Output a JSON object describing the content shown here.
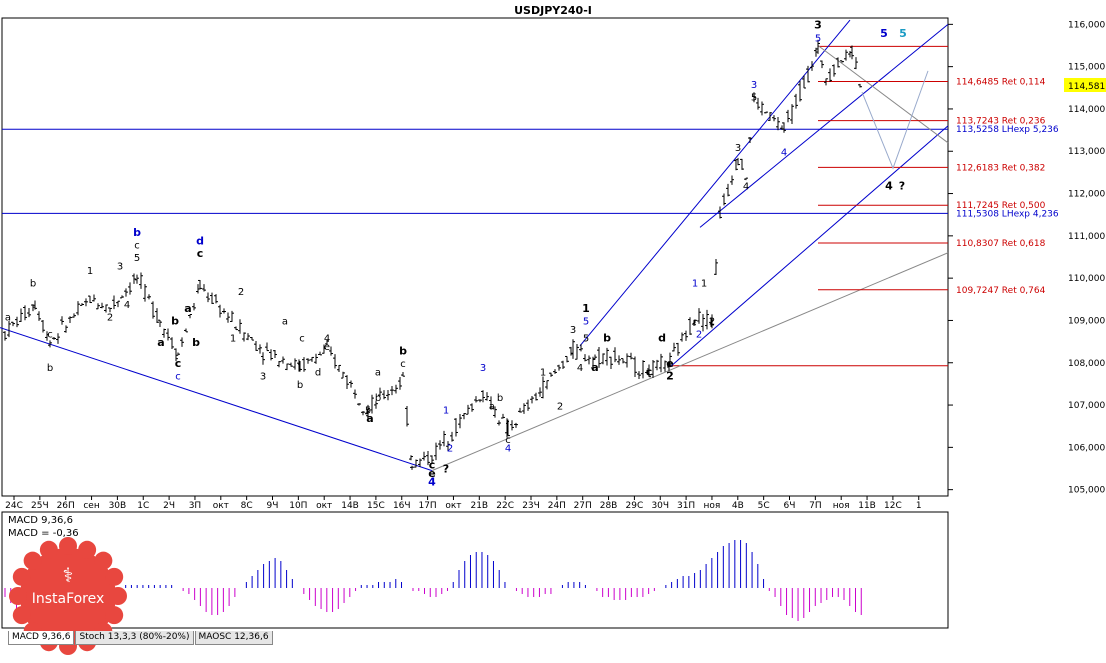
{
  "chart_data": {
    "type": "ohlc",
    "title": "USDJPY240-I",
    "price_axis": {
      "ticks": [
        "116,000",
        "115,000",
        "114,000",
        "113,000",
        "112,000",
        "111,000",
        "110,000",
        "109,000",
        "108,000",
        "107,000",
        "106,000",
        "105,000"
      ],
      "ylim": [
        104.85,
        116.15
      ],
      "current_price": "114,581"
    },
    "time_axis_labels": [
      "24С",
      "25Ч",
      "26П",
      "сен",
      "30В",
      "1С",
      "2Ч",
      "3П",
      "окт",
      "8С",
      "9Ч",
      "10П",
      "окт",
      "14В",
      "15С",
      "16Ч",
      "17П",
      "окт",
      "21В",
      "22С",
      "23Ч",
      "24П",
      "27П",
      "28В",
      "29С",
      "30Ч",
      "31П",
      "ноя",
      "4В",
      "5С",
      "6Ч",
      "7П",
      "ноя",
      "11В",
      "12С",
      "1"
    ],
    "fib_levels": [
      {
        "price": 114.6485,
        "label": "114,6485 Ret 0,114",
        "color": "#cc0000"
      },
      {
        "price": 113.7243,
        "label": "113,7243 Ret 0,236",
        "color": "#cc0000"
      },
      {
        "price": 113.5258,
        "label": "113,5258 LHexp 5,236",
        "color": "#0000cc"
      },
      {
        "price": 112.6183,
        "label": "112,6183 Ret 0,382",
        "color": "#cc0000"
      },
      {
        "price": 111.7245,
        "label": "111,7245 Ret 0,500",
        "color": "#cc0000"
      },
      {
        "price": 111.5308,
        "label": "111,5308 LHexp 4,236",
        "color": "#0000cc"
      },
      {
        "price": 110.8307,
        "label": "110,8307 Ret 0,618",
        "color": "#cc0000"
      },
      {
        "price": 109.7247,
        "label": "109,7247 Ret 0,764",
        "color": "#cc0000"
      }
    ],
    "horizontal_lines": [
      {
        "price": 115.48,
        "color": "#cc0000"
      },
      {
        "price": 107.93,
        "color": "#cc0000"
      },
      {
        "price": 113.52,
        "color": "#0000cc"
      },
      {
        "price": 111.53,
        "color": "#0000cc"
      }
    ],
    "wave_labels": [
      {
        "t": "a",
        "x": 8,
        "y": 109.0,
        "c": "#000"
      },
      {
        "t": "b",
        "x": 33,
        "y": 109.8,
        "c": "#000"
      },
      {
        "t": "c",
        "x": 50,
        "y": 108.6,
        "c": "#000"
      },
      {
        "t": "b",
        "x": 50,
        "y": 107.8,
        "c": "#000"
      },
      {
        "t": "1",
        "x": 90,
        "y": 110.1,
        "c": "#000"
      },
      {
        "t": "2",
        "x": 110,
        "y": 109.0,
        "c": "#000"
      },
      {
        "t": "3",
        "x": 120,
        "y": 110.2,
        "c": "#000"
      },
      {
        "t": "4",
        "x": 127,
        "y": 109.3,
        "c": "#000"
      },
      {
        "t": "5",
        "x": 137,
        "y": 110.4,
        "c": "#000"
      },
      {
        "t": "c",
        "x": 137,
        "y": 110.7,
        "c": "#000"
      },
      {
        "t": "b",
        "x": 137,
        "y": 111.0,
        "c": "#0000cc",
        "b": true
      },
      {
        "t": "a",
        "x": 161,
        "y": 108.4,
        "c": "#000",
        "b": true
      },
      {
        "t": "b",
        "x": 175,
        "y": 108.9,
        "c": "#000",
        "b": true
      },
      {
        "t": "c",
        "x": 178,
        "y": 107.9,
        "c": "#000",
        "b": true
      },
      {
        "t": "c",
        "x": 178,
        "y": 107.6,
        "c": "#0000cc"
      },
      {
        "t": "a",
        "x": 188,
        "y": 109.2,
        "c": "#000",
        "b": true
      },
      {
        "t": "b",
        "x": 196,
        "y": 108.4,
        "c": "#000",
        "b": true
      },
      {
        "t": "c",
        "x": 200,
        "y": 110.5,
        "c": "#000",
        "b": true
      },
      {
        "t": "d",
        "x": 200,
        "y": 110.8,
        "c": "#0000cc",
        "b": true
      },
      {
        "t": "2",
        "x": 241,
        "y": 109.6,
        "c": "#000"
      },
      {
        "t": "1",
        "x": 233,
        "y": 108.5,
        "c": "#000"
      },
      {
        "t": "3",
        "x": 263,
        "y": 107.6,
        "c": "#000"
      },
      {
        "t": "a",
        "x": 285,
        "y": 108.9,
        "c": "#000"
      },
      {
        "t": "b",
        "x": 300,
        "y": 107.4,
        "c": "#000"
      },
      {
        "t": "c",
        "x": 302,
        "y": 108.5,
        "c": "#000"
      },
      {
        "t": "4",
        "x": 327,
        "y": 108.5,
        "c": "#000"
      },
      {
        "t": "e",
        "x": 327,
        "y": 108.3,
        "c": "#000"
      },
      {
        "t": "d",
        "x": 318,
        "y": 107.7,
        "c": "#000"
      },
      {
        "t": "a",
        "x": 378,
        "y": 107.7,
        "c": "#000"
      },
      {
        "t": "b",
        "x": 378,
        "y": 107.1,
        "c": "#000"
      },
      {
        "t": "5",
        "x": 368,
        "y": 106.8,
        "c": "#000"
      },
      {
        "t": "a",
        "x": 370,
        "y": 106.6,
        "c": "#000",
        "b": true
      },
      {
        "t": "c",
        "x": 403,
        "y": 107.9,
        "c": "#000"
      },
      {
        "t": "b",
        "x": 403,
        "y": 108.2,
        "c": "#000",
        "b": true
      },
      {
        "t": "c",
        "x": 432,
        "y": 105.5,
        "c": "#000",
        "b": true
      },
      {
        "t": "e",
        "x": 432,
        "y": 105.3,
        "c": "#000",
        "b": true
      },
      {
        "t": "4",
        "x": 432,
        "y": 105.1,
        "c": "#0000cc",
        "b": true
      },
      {
        "t": "?",
        "x": 446,
        "y": 105.4,
        "c": "#000",
        "b": true
      },
      {
        "t": "1",
        "x": 446,
        "y": 106.8,
        "c": "#0000cc"
      },
      {
        "t": "2",
        "x": 450,
        "y": 105.9,
        "c": "#0000cc"
      },
      {
        "t": "3",
        "x": 483,
        "y": 107.8,
        "c": "#0000cc"
      },
      {
        "t": "a",
        "x": 492,
        "y": 106.9,
        "c": "#000"
      },
      {
        "t": "b",
        "x": 500,
        "y": 107.1,
        "c": "#000"
      },
      {
        "t": "c",
        "x": 508,
        "y": 106.1,
        "c": "#000"
      },
      {
        "t": "4",
        "x": 508,
        "y": 105.9,
        "c": "#0000cc"
      },
      {
        "t": "1",
        "x": 543,
        "y": 107.7,
        "c": "#000"
      },
      {
        "t": "2",
        "x": 560,
        "y": 106.9,
        "c": "#000"
      },
      {
        "t": "3",
        "x": 573,
        "y": 108.7,
        "c": "#000"
      },
      {
        "t": "4",
        "x": 580,
        "y": 107.8,
        "c": "#000"
      },
      {
        "t": "5",
        "x": 586,
        "y": 108.5,
        "c": "#000"
      },
      {
        "t": "5",
        "x": 586,
        "y": 108.9,
        "c": "#0000cc"
      },
      {
        "t": "1",
        "x": 586,
        "y": 109.2,
        "c": "#000",
        "b": true
      },
      {
        "t": "a",
        "x": 595,
        "y": 107.8,
        "c": "#000",
        "b": true
      },
      {
        "t": "b",
        "x": 607,
        "y": 108.5,
        "c": "#000",
        "b": true
      },
      {
        "t": "c",
        "x": 649,
        "y": 107.7,
        "c": "#000",
        "b": true
      },
      {
        "t": "d",
        "x": 662,
        "y": 108.5,
        "c": "#000",
        "b": true
      },
      {
        "t": "e",
        "x": 670,
        "y": 107.9,
        "c": "#000",
        "b": true
      },
      {
        "t": "2",
        "x": 670,
        "y": 107.6,
        "c": "#000",
        "b": true
      },
      {
        "t": "1",
        "x": 695,
        "y": 109.8,
        "c": "#0000cc"
      },
      {
        "t": "1",
        "x": 704,
        "y": 109.8,
        "c": "#000"
      },
      {
        "t": "2",
        "x": 699,
        "y": 108.6,
        "c": "#0000cc"
      },
      {
        "t": "2",
        "x": 712,
        "y": 108.9,
        "c": "#000"
      },
      {
        "t": "3",
        "x": 738,
        "y": 113.0,
        "c": "#000"
      },
      {
        "t": "4",
        "x": 746,
        "y": 112.1,
        "c": "#000"
      },
      {
        "t": "5",
        "x": 754,
        "y": 114.2,
        "c": "#000"
      },
      {
        "t": "3",
        "x": 754,
        "y": 114.5,
        "c": "#0000cc"
      },
      {
        "t": "4",
        "x": 784,
        "y": 112.9,
        "c": "#0000cc"
      },
      {
        "t": "5",
        "x": 818,
        "y": 115.6,
        "c": "#0000cc"
      },
      {
        "t": "3",
        "x": 818,
        "y": 115.9,
        "c": "#000",
        "b": true
      },
      {
        "t": "5",
        "x": 884,
        "y": 115.7,
        "c": "#0000cc",
        "b": true
      },
      {
        "t": "5",
        "x": 903,
        "y": 115.7,
        "c": "#1a9bc4",
        "b": true
      },
      {
        "t": "4",
        "x": 889,
        "y": 112.1,
        "c": "#000",
        "b": true
      },
      {
        "t": "?",
        "x": 902,
        "y": 112.1,
        "c": "#000",
        "b": true
      }
    ],
    "trend_lines": [
      {
        "x1": 0,
        "y1": 108.83,
        "x2": 432,
        "y2": 105.45,
        "c": "#0000cc"
      },
      {
        "x1": 432,
        "y1": 105.45,
        "x2": 948,
        "y2": 110.6,
        "c": "#888888"
      },
      {
        "x1": 580,
        "y1": 108.4,
        "x2": 850,
        "y2": 116.1,
        "c": "#0000cc"
      },
      {
        "x1": 670,
        "y1": 107.9,
        "x2": 948,
        "y2": 113.6,
        "c": "#0000cc"
      },
      {
        "x1": 700,
        "y1": 111.2,
        "x2": 948,
        "y2": 116.0,
        "c": "#0000cc"
      },
      {
        "x1": 818,
        "y1": 115.5,
        "x2": 948,
        "y2": 113.2,
        "c": "#888888"
      }
    ],
    "projection": [
      {
        "x": 862,
        "y": 114.4
      },
      {
        "x": 893,
        "y": 112.6
      },
      {
        "x": 928,
        "y": 114.9
      }
    ],
    "indicator": {
      "name": "MACD 9,36,6",
      "value_label": "MACD = -0,36",
      "histogram": [
        -0.3,
        -0.5,
        -0.7,
        -0.9,
        -1.0,
        -1.0,
        -0.9,
        -0.7,
        -0.5,
        -0.4,
        -0.3,
        -0.3,
        -0.3,
        -0.2,
        -0.2,
        -0.2,
        -0.1,
        -0.1,
        -0.1,
        0.0,
        0.0,
        0.1,
        0.1,
        0.1,
        0.1,
        0.1,
        0.1,
        0.1,
        0.1,
        0.1,
        0.0,
        -0.1,
        -0.2,
        -0.4,
        -0.6,
        -0.8,
        -0.9,
        -0.9,
        -0.8,
        -0.6,
        -0.3,
        0.0,
        0.2,
        0.4,
        0.6,
        0.8,
        0.9,
        1.0,
        0.9,
        0.6,
        0.3,
        0.0,
        -0.2,
        -0.4,
        -0.6,
        -0.7,
        -0.8,
        -0.8,
        -0.7,
        -0.5,
        -0.3,
        -0.1,
        0.1,
        0.1,
        0.1,
        0.2,
        0.2,
        0.2,
        0.3,
        0.2,
        0.0,
        -0.1,
        -0.1,
        -0.2,
        -0.3,
        -0.3,
        -0.2,
        -0.1,
        0.2,
        0.6,
        0.9,
        1.1,
        1.2,
        1.2,
        1.1,
        0.9,
        0.6,
        0.2,
        0.0,
        -0.1,
        -0.2,
        -0.3,
        -0.3,
        -0.3,
        -0.2,
        -0.2,
        0.0,
        0.1,
        0.2,
        0.2,
        0.2,
        0.1,
        0.0,
        -0.1,
        -0.3,
        -0.3,
        -0.4,
        -0.4,
        -0.4,
        -0.3,
        -0.3,
        -0.3,
        -0.2,
        -0.1,
        0.0,
        0.1,
        0.2,
        0.3,
        0.4,
        0.4,
        0.5,
        0.6,
        0.8,
        1.0,
        1.2,
        1.4,
        1.5,
        1.6,
        1.6,
        1.5,
        1.2,
        0.8,
        0.3,
        -0.1,
        -0.3,
        -0.6,
        -0.9,
        -1.0,
        -1.1,
        -1.0,
        -0.8,
        -0.6,
        -0.5,
        -0.4,
        -0.3,
        -0.3,
        -0.4,
        -0.6,
        -0.8,
        -0.9
      ]
    }
  },
  "tabs": [
    "MACD 9,36,6",
    "Stoch 13,3,3 (80%-20%)",
    "MAOSC 12,36,6"
  ],
  "logo": {
    "text": "InstaForex"
  },
  "colors": {
    "bull": "#0000cc",
    "bear": "#cc0000",
    "macd_pos": "#0000cc",
    "macd_neg": "#cc00cc",
    "current_bg": "#ffff00"
  }
}
